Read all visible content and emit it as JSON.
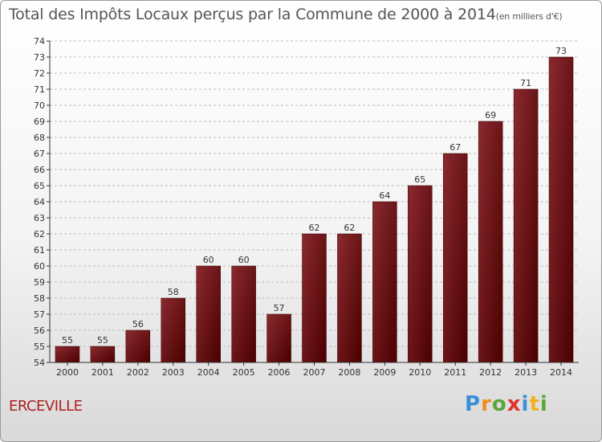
{
  "chart_data": {
    "type": "bar",
    "title": "Total des Impôts Locaux perçus par la Commune de 2000 à 2014",
    "unit": "(en milliers d'€)",
    "categories": [
      "2000",
      "2001",
      "2002",
      "2003",
      "2004",
      "2005",
      "2006",
      "2007",
      "2008",
      "2009",
      "2010",
      "2011",
      "2012",
      "2013",
      "2014"
    ],
    "values": [
      55,
      55,
      56,
      58,
      60,
      60,
      57,
      62,
      62,
      64,
      65,
      67,
      69,
      71,
      73
    ],
    "ylim": [
      54,
      74
    ],
    "yticks": [
      54,
      55,
      56,
      57,
      58,
      59,
      60,
      61,
      62,
      63,
      64,
      65,
      66,
      67,
      68,
      69,
      70,
      71,
      72,
      73,
      74
    ],
    "grid": true,
    "bar_color": "#6b0f12",
    "xlabel": "",
    "ylabel": ""
  },
  "commune": "ERCEVILLE",
  "logo": {
    "letters": [
      "P",
      "r",
      "o",
      "x",
      "i",
      "t",
      "i"
    ],
    "colors": [
      "#3a8fd8",
      "#f28c1e",
      "#5aa63a",
      "#e0322c",
      "#3a8fd8",
      "#f2b21e",
      "#5aa63a"
    ]
  }
}
